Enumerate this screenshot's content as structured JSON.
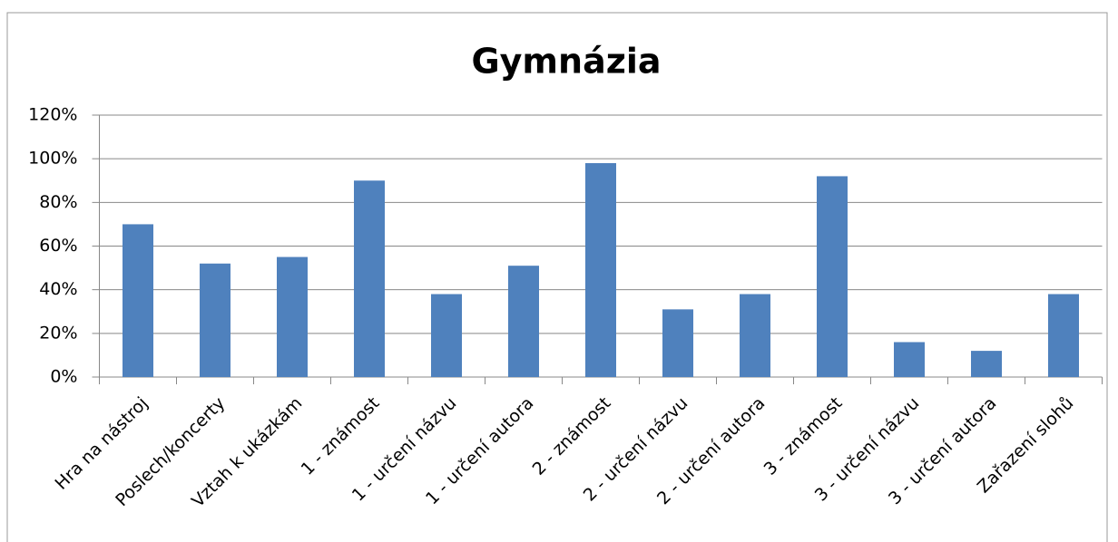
{
  "chart_data": {
    "type": "bar",
    "title": "Gymnázia",
    "categories": [
      "Hra na nástroj",
      "Poslech/koncerty",
      "Vztah k ukázkám",
      "1 - známost",
      "1 - určení názvu",
      "1 - určení autora",
      "2 - známost",
      "2 - určení názvu",
      "2 - určení autora",
      "3 - známost",
      "3 - určení názvu",
      "3 - určení autora",
      "Zařazení slohů"
    ],
    "values": [
      70,
      52,
      55,
      90,
      38,
      51,
      98,
      31,
      38,
      92,
      16,
      12,
      38
    ],
    "color": "#4f81bd",
    "ylim": [
      0,
      120
    ],
    "yticks": [
      {
        "value": 0,
        "label": "0%"
      },
      {
        "value": 20,
        "label": "20%"
      },
      {
        "value": 40,
        "label": "40%"
      },
      {
        "value": 60,
        "label": "60%"
      },
      {
        "value": 80,
        "label": "80%"
      },
      {
        "value": 100,
        "label": "100%"
      },
      {
        "value": 120,
        "label": "120%"
      }
    ],
    "grid": true
  }
}
